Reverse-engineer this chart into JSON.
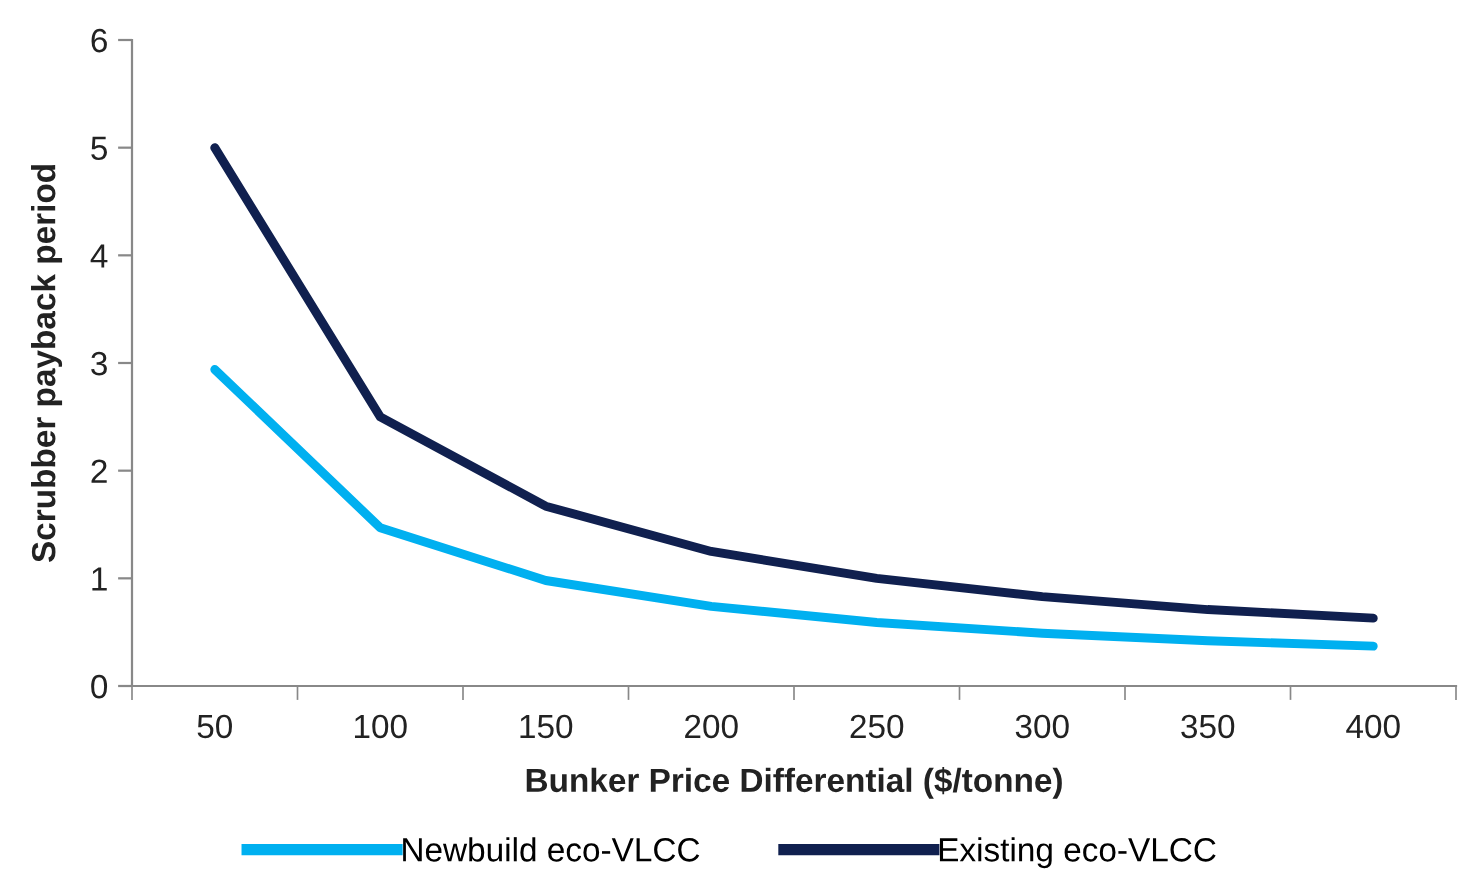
{
  "chart_data": {
    "type": "line",
    "xlabel": "Bunker Price Differential ($/tonne)",
    "ylabel": "Scrubber payback period",
    "categories": [
      "50",
      "100",
      "150",
      "200",
      "250",
      "300",
      "350",
      "400"
    ],
    "series": [
      {
        "name": "Newbuild eco-VLCC",
        "color": "#00b0f0",
        "values": [
          2.94,
          1.47,
          0.98,
          0.74,
          0.59,
          0.49,
          0.42,
          0.37
        ]
      },
      {
        "name": "Existing eco-VLCC",
        "color": "#10204f",
        "values": [
          5.0,
          2.5,
          1.67,
          1.25,
          1.0,
          0.83,
          0.71,
          0.63
        ]
      }
    ],
    "ylim": [
      0,
      6
    ],
    "yticks": [
      0,
      1,
      2,
      3,
      4,
      5,
      6
    ],
    "grid": false,
    "legend": "bottom",
    "marker": "none",
    "line_style": "solid"
  }
}
